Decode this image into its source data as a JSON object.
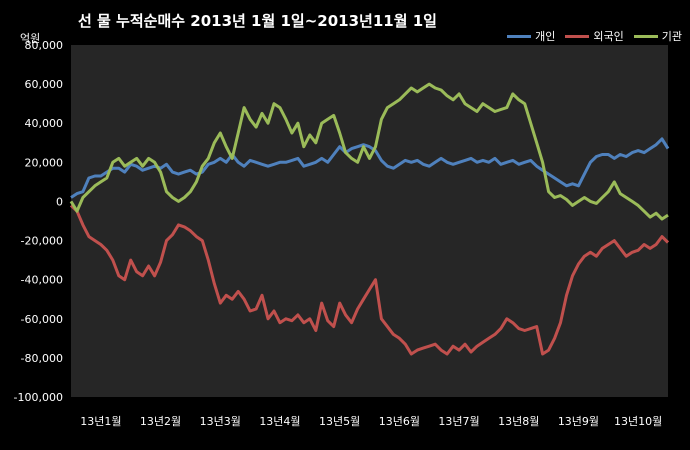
{
  "chart_data": {
    "type": "line",
    "title": "선 물 누적순매수 2013년 1월 1일~2013년11월 1일",
    "ylabel": "억원",
    "ylim": [
      -100000,
      80000
    ],
    "yticks": [
      "80,000",
      "60,000",
      "40,000",
      "20,000",
      "0",
      "-20,000",
      "-40,000",
      "-60,000",
      "-80,000",
      "-100,000"
    ],
    "xticks": [
      "13년1월",
      "13년2월",
      "13년3월",
      "13년4월",
      "13년5월",
      "13년6월",
      "13년7월",
      "13년8월",
      "13년9월",
      "13년10월"
    ],
    "grid": false,
    "legend": "top-right",
    "series": [
      {
        "name": "개인",
        "color": "#4f81bd",
        "x": [
          0,
          0.1,
          0.2,
          0.3,
          0.4,
          0.5,
          0.6,
          0.7,
          0.8,
          0.9,
          1.0,
          1.1,
          1.2,
          1.3,
          1.4,
          1.5,
          1.6,
          1.7,
          1.8,
          1.9,
          2.0,
          2.1,
          2.2,
          2.3,
          2.4,
          2.5,
          2.6,
          2.7,
          2.8,
          2.9,
          3.0,
          3.1,
          3.2,
          3.3,
          3.4,
          3.5,
          3.6,
          3.7,
          3.8,
          3.9,
          4.0,
          4.1,
          4.2,
          4.3,
          4.4,
          4.5,
          4.6,
          4.7,
          4.8,
          4.9,
          5.0,
          5.1,
          5.2,
          5.3,
          5.4,
          5.5,
          5.6,
          5.7,
          5.8,
          5.9,
          6.0,
          6.1,
          6.2,
          6.3,
          6.4,
          6.5,
          6.6,
          6.7,
          6.8,
          6.9,
          7.0,
          7.1,
          7.2,
          7.3,
          7.4,
          7.5,
          7.6,
          7.7,
          7.8,
          7.9,
          8.0,
          8.1,
          8.2,
          8.3,
          8.4,
          8.5,
          8.6,
          8.7,
          8.8,
          8.9,
          9.0,
          9.1,
          9.2,
          9.3,
          9.4,
          9.5,
          9.6,
          9.7,
          9.8,
          9.9,
          10.0
        ],
        "values": [
          2000,
          4000,
          5000,
          12000,
          13000,
          13000,
          15000,
          17000,
          17000,
          15000,
          19000,
          18000,
          16000,
          17000,
          18000,
          17000,
          19000,
          15000,
          14000,
          15000,
          16000,
          14000,
          15000,
          19000,
          20000,
          22000,
          20000,
          24000,
          20000,
          18000,
          21000,
          20000,
          19000,
          18000,
          19000,
          20000,
          20000,
          21000,
          22000,
          18000,
          19000,
          20000,
          22000,
          20000,
          24000,
          28000,
          25000,
          27000,
          28000,
          29000,
          28000,
          26000,
          21000,
          18000,
          17000,
          19000,
          21000,
          20000,
          21000,
          19000,
          18000,
          20000,
          22000,
          20000,
          19000,
          20000,
          21000,
          22000,
          20000,
          21000,
          20000,
          22000,
          19000,
          20000,
          21000,
          19000,
          20000,
          21000,
          18000,
          16000,
          14000,
          12000,
          10000,
          8000,
          9000,
          8000,
          14000,
          20000,
          23000,
          24000,
          24000,
          22000,
          24000,
          23000,
          25000,
          26000,
          25000,
          27000,
          29000,
          32000,
          27000
        ]
      },
      {
        "name": "외국인",
        "color": "#c0504d",
        "x": [
          0,
          0.1,
          0.2,
          0.3,
          0.4,
          0.5,
          0.6,
          0.7,
          0.8,
          0.9,
          1.0,
          1.1,
          1.2,
          1.3,
          1.4,
          1.5,
          1.6,
          1.7,
          1.8,
          1.9,
          2.0,
          2.1,
          2.2,
          2.3,
          2.4,
          2.5,
          2.6,
          2.7,
          2.8,
          2.9,
          3.0,
          3.1,
          3.2,
          3.3,
          3.4,
          3.5,
          3.6,
          3.7,
          3.8,
          3.9,
          4.0,
          4.1,
          4.2,
          4.3,
          4.4,
          4.5,
          4.6,
          4.7,
          4.8,
          4.9,
          5.0,
          5.1,
          5.2,
          5.3,
          5.4,
          5.5,
          5.6,
          5.7,
          5.8,
          5.9,
          6.0,
          6.1,
          6.2,
          6.3,
          6.4,
          6.5,
          6.6,
          6.7,
          6.8,
          6.9,
          7.0,
          7.1,
          7.2,
          7.3,
          7.4,
          7.5,
          7.6,
          7.7,
          7.8,
          7.9,
          8.0,
          8.1,
          8.2,
          8.3,
          8.4,
          8.5,
          8.6,
          8.7,
          8.8,
          8.9,
          9.0,
          9.1,
          9.2,
          9.3,
          9.4,
          9.5,
          9.6,
          9.7,
          9.8,
          9.9,
          10.0
        ],
        "values": [
          -2000,
          -5000,
          -12000,
          -18000,
          -20000,
          -22000,
          -25000,
          -30000,
          -38000,
          -40000,
          -30000,
          -36000,
          -38000,
          -33000,
          -38000,
          -31000,
          -20000,
          -17000,
          -12000,
          -13000,
          -15000,
          -18000,
          -20000,
          -30000,
          -42000,
          -52000,
          -48000,
          -50000,
          -46000,
          -50000,
          -56000,
          -55000,
          -48000,
          -60000,
          -56000,
          -62000,
          -60000,
          -61000,
          -58000,
          -62000,
          -60000,
          -66000,
          -52000,
          -61000,
          -64000,
          -52000,
          -58000,
          -62000,
          -55000,
          -50000,
          -45000,
          -40000,
          -60000,
          -64000,
          -68000,
          -70000,
          -73000,
          -78000,
          -76000,
          -75000,
          -74000,
          -73000,
          -76000,
          -78000,
          -74000,
          -76000,
          -73000,
          -77000,
          -74000,
          -72000,
          -70000,
          -68000,
          -65000,
          -60000,
          -62000,
          -65000,
          -66000,
          -65000,
          -64000,
          -78000,
          -76000,
          -70000,
          -62000,
          -48000,
          -38000,
          -32000,
          -28000,
          -26000,
          -28000,
          -24000,
          -22000,
          -20000,
          -24000,
          -28000,
          -26000,
          -25000,
          -22000,
          -24000,
          -22000,
          -18000,
          -21000
        ]
      },
      {
        "name": "기관",
        "color": "#9bbb59",
        "x": [
          0,
          0.1,
          0.2,
          0.3,
          0.4,
          0.5,
          0.6,
          0.7,
          0.8,
          0.9,
          1.0,
          1.1,
          1.2,
          1.3,
          1.4,
          1.5,
          1.6,
          1.7,
          1.8,
          1.9,
          2.0,
          2.1,
          2.2,
          2.3,
          2.4,
          2.5,
          2.6,
          2.7,
          2.8,
          2.9,
          3.0,
          3.1,
          3.2,
          3.3,
          3.4,
          3.5,
          3.6,
          3.7,
          3.8,
          3.9,
          4.0,
          4.1,
          4.2,
          4.3,
          4.4,
          4.5,
          4.6,
          4.7,
          4.8,
          4.9,
          5.0,
          5.1,
          5.2,
          5.3,
          5.4,
          5.5,
          5.6,
          5.7,
          5.8,
          5.9,
          6.0,
          6.1,
          6.2,
          6.3,
          6.4,
          6.5,
          6.6,
          6.7,
          6.8,
          6.9,
          7.0,
          7.1,
          7.2,
          7.3,
          7.4,
          7.5,
          7.6,
          7.7,
          7.8,
          7.9,
          8.0,
          8.1,
          8.2,
          8.3,
          8.4,
          8.5,
          8.6,
          8.7,
          8.8,
          8.9,
          9.0,
          9.1,
          9.2,
          9.3,
          9.4,
          9.5,
          9.6,
          9.7,
          9.8,
          9.9,
          10.0
        ],
        "values": [
          0,
          -5000,
          2000,
          5000,
          8000,
          10000,
          12000,
          20000,
          22000,
          18000,
          20000,
          22000,
          18000,
          22000,
          20000,
          15000,
          5000,
          2000,
          0,
          2000,
          5000,
          10000,
          18000,
          22000,
          30000,
          35000,
          28000,
          22000,
          35000,
          48000,
          42000,
          38000,
          45000,
          40000,
          50000,
          48000,
          42000,
          35000,
          40000,
          28000,
          34000,
          30000,
          40000,
          42000,
          44000,
          35000,
          25000,
          22000,
          20000,
          28000,
          22000,
          28000,
          42000,
          48000,
          50000,
          52000,
          55000,
          58000,
          56000,
          58000,
          60000,
          58000,
          57000,
          54000,
          52000,
          55000,
          50000,
          48000,
          46000,
          50000,
          48000,
          46000,
          47000,
          48000,
          55000,
          52000,
          50000,
          40000,
          30000,
          20000,
          5000,
          2000,
          3000,
          1000,
          -2000,
          0,
          2000,
          0,
          -1000,
          2000,
          5000,
          10000,
          4000,
          2000,
          0,
          -2000,
          -5000,
          -8000,
          -6000,
          -9000,
          -7000
        ]
      }
    ]
  }
}
